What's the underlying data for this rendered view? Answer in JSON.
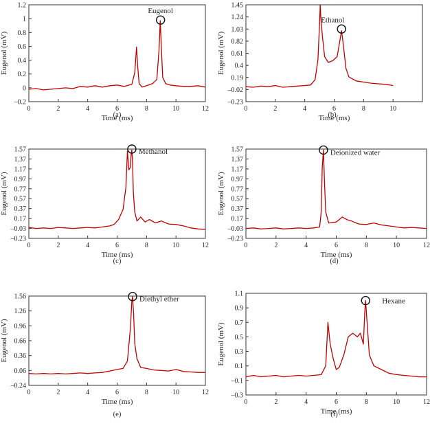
{
  "figure": {
    "chart_data": [
      {
        "panel_label": "(a)",
        "type": "line",
        "title": "",
        "xlabel": "Time (ms)",
        "ylabel": "Eugenol (mV)",
        "xlim": [
          0,
          12
        ],
        "ylim": [
          -0.2,
          1.2
        ],
        "xticks": [
          0,
          2,
          4,
          6,
          8,
          10,
          12
        ],
        "xtick_labels": [
          "0",
          "2",
          "4",
          "6",
          "8",
          "10",
          "12"
        ],
        "yticks": [
          -0.2,
          0,
          0.2,
          0.4,
          0.6,
          0.8,
          1,
          1.2
        ],
        "ytick_labels": [
          "–0.2",
          "0",
          "0.2",
          "0.4",
          "0.6",
          "0.8",
          "1",
          "1.2"
        ],
        "annotation": "Eugenol",
        "marker": {
          "x": 8.95,
          "y": 0.98
        },
        "series": [
          {
            "name": "Eugenol",
            "color": "#c00000",
            "x": [
              0,
              0.5,
              1,
              1.5,
              2,
              2.5,
              3,
              3.5,
              4,
              4.5,
              5,
              5.5,
              6,
              6.5,
              7,
              7.2,
              7.32,
              7.4,
              7.5,
              7.7,
              8,
              8.4,
              8.7,
              8.85,
              8.93,
              9.0,
              9.1,
              9.3,
              9.6,
              10,
              10.5,
              11,
              11.5,
              12
            ],
            "y": [
              -0.02,
              -0.01,
              -0.03,
              -0.02,
              -0.01,
              0,
              -0.01,
              0.02,
              0.01,
              0.03,
              0.01,
              0.03,
              0.04,
              0.02,
              0.05,
              0.22,
              0.59,
              0.3,
              0.06,
              0.01,
              0.03,
              0.06,
              0.12,
              0.55,
              0.97,
              0.6,
              0.15,
              0.06,
              0.04,
              0.03,
              0.02,
              0.02,
              0.03,
              0.01
            ]
          }
        ]
      },
      {
        "panel_label": "(b)",
        "type": "line",
        "title": "",
        "xlabel": "Time (ms)",
        "ylabel": "Eugenol (mV)",
        "xlim": [
          0,
          12
        ],
        "ylim": [
          -0.23,
          1.45
        ],
        "xticks": [
          0,
          2,
          4,
          6,
          8,
          10
        ],
        "xtick_labels": [
          "0",
          "2",
          "4",
          "6",
          "8",
          "10"
        ],
        "yticks": [
          -0.23,
          -0.02,
          0.19,
          0.4,
          0.61,
          0.82,
          1.03,
          1.24,
          1.45
        ],
        "ytick_labels": [
          "–0.23",
          "–0.02",
          "0.19",
          "0.4",
          "0.61",
          "0.82",
          "1.03",
          "1.24",
          "1.45"
        ],
        "annotation": "Ethanol",
        "marker": {
          "x": 6.5,
          "y": 1.03
        },
        "series": [
          {
            "name": "Ethanol",
            "color": "#c00000",
            "x": [
              0,
              0.5,
              1,
              1.5,
              2,
              2.5,
              3,
              3.5,
              4,
              4.4,
              4.7,
              4.9,
              5.0,
              5.05,
              5.1,
              5.2,
              5.35,
              5.6,
              5.9,
              6.2,
              6.4,
              6.5,
              6.6,
              6.8,
              7,
              7.5,
              8,
              8.5,
              9,
              9.5,
              10
            ],
            "y": [
              0.03,
              0.02,
              0.04,
              0.03,
              0.05,
              0.02,
              0.03,
              0.04,
              0.05,
              0.06,
              0.15,
              0.5,
              1.1,
              1.45,
              1.2,
              0.9,
              0.55,
              0.45,
              0.48,
              0.55,
              0.85,
              1.0,
              0.8,
              0.35,
              0.2,
              0.13,
              0.11,
              0.09,
              0.08,
              0.07,
              0.05
            ]
          }
        ]
      },
      {
        "panel_label": "(c)",
        "type": "line",
        "title": "",
        "xlabel": "Time (ms)",
        "ylabel": "Eugenol (mV)",
        "xlim": [
          0,
          12
        ],
        "ylim": [
          -0.23,
          1.57
        ],
        "xticks": [
          0,
          2,
          4,
          6,
          8,
          10,
          12
        ],
        "xtick_labels": [
          "0",
          "2",
          "4",
          "6",
          "8",
          "10",
          "12"
        ],
        "yticks": [
          -0.23,
          -0.03,
          0.17,
          0.37,
          0.57,
          0.77,
          0.97,
          1.17,
          1.37,
          1.57
        ],
        "ytick_labels": [
          "–0.23",
          "–0.03",
          "0.17",
          "0.37",
          "0.57",
          "0.77",
          "0.97",
          "1.17",
          "1.37",
          "1.57"
        ],
        "annotation": "Methanol",
        "marker": {
          "x": 7.0,
          "y": 1.57
        },
        "series": [
          {
            "name": "Methanol",
            "color": "#c00000",
            "x": [
              0,
              0.5,
              1,
              1.5,
              2,
              2.5,
              3,
              3.5,
              4,
              4.5,
              5,
              5.5,
              5.8,
              6.1,
              6.4,
              6.6,
              6.7,
              6.8,
              6.9,
              6.95,
              7.0,
              7.05,
              7.1,
              7.2,
              7.35,
              7.6,
              7.9,
              8.2,
              8.6,
              9,
              9.5,
              10,
              10.5,
              11,
              11.5,
              12
            ],
            "y": [
              -0.01,
              -0.03,
              -0.02,
              -0.03,
              -0.01,
              -0.02,
              -0.03,
              -0.02,
              -0.01,
              -0.02,
              0,
              0.02,
              0.05,
              0.15,
              0.35,
              0.8,
              1.53,
              1.15,
              1.2,
              1.45,
              1.55,
              1.3,
              0.7,
              0.3,
              0.12,
              0.2,
              0.1,
              0.15,
              0.08,
              0.12,
              0.06,
              0.05,
              0.02,
              -0.02,
              -0.04,
              -0.05
            ]
          }
        ]
      },
      {
        "panel_label": "(d)",
        "type": "line",
        "title": "",
        "xlabel": "Time (ms)",
        "ylabel": "Eugenol (mV)",
        "xlim": [
          0,
          12
        ],
        "ylim": [
          -0.23,
          1.57
        ],
        "xticks": [
          0,
          2,
          4,
          6,
          8,
          10,
          12
        ],
        "xtick_labels": [
          "0",
          "2",
          "4",
          "6",
          "8",
          "10",
          "12"
        ],
        "yticks": [
          -0.23,
          -0.03,
          0.17,
          0.37,
          0.57,
          0.77,
          0.97,
          1.17,
          1.37,
          1.57
        ],
        "ytick_labels": [
          "–0.23",
          "–0.03",
          "0.17",
          "0.37",
          "0.57",
          "0.77",
          "0.97",
          "1.17",
          "1.37",
          "1.57"
        ],
        "annotation": "Deionized water",
        "marker": {
          "x": 5.15,
          "y": 1.55
        },
        "series": [
          {
            "name": "Deionized water",
            "color": "#c00000",
            "x": [
              0,
              0.5,
              1,
              1.5,
              2,
              2.5,
              3,
              3.5,
              4,
              4.5,
              4.9,
              5.0,
              5.07,
              5.15,
              5.22,
              5.3,
              5.5,
              6,
              6.4,
              6.7,
              7,
              7.5,
              8,
              8.5,
              9,
              9.5,
              10,
              10.5,
              11,
              11.5,
              12
            ],
            "y": [
              -0.03,
              -0.02,
              -0.04,
              -0.03,
              -0.02,
              -0.04,
              -0.03,
              -0.02,
              -0.03,
              -0.02,
              0,
              0.3,
              1.2,
              1.55,
              0.9,
              0.3,
              0.08,
              0.1,
              0.2,
              0.15,
              0.12,
              0.06,
              0.05,
              0.08,
              0.04,
              0.02,
              0.0,
              -0.02,
              -0.01,
              -0.02,
              -0.03
            ]
          }
        ]
      },
      {
        "panel_label": "(e)",
        "type": "line",
        "title": "",
        "xlabel": "Time (ms)",
        "ylabel": "Eugenol (mV)",
        "xlim": [
          0,
          12
        ],
        "ylim": [
          -0.24,
          1.56
        ],
        "xticks": [
          0,
          2,
          4,
          6,
          8,
          10,
          12
        ],
        "xtick_labels": [
          "0",
          "2",
          "4",
          "6",
          "8",
          "10",
          "12"
        ],
        "yticks": [
          -0.24,
          0.06,
          0.36,
          0.66,
          0.96,
          1.26,
          1.56
        ],
        "ytick_labels": [
          "–0.24",
          "0.06",
          "0.36",
          "0.66",
          "0.96",
          "1.26",
          "1.56"
        ],
        "annotation": "Diethyl ether",
        "marker": {
          "x": 7.05,
          "y": 1.55
        },
        "series": [
          {
            "name": "Diethyl ether",
            "color": "#c00000",
            "x": [
              0,
              0.5,
              1,
              1.5,
              2,
              2.5,
              3,
              3.5,
              4,
              4.5,
              5,
              5.5,
              6,
              6.4,
              6.7,
              6.9,
              7.0,
              7.05,
              7.12,
              7.2,
              7.35,
              7.6,
              8,
              8.5,
              9,
              9.5,
              10,
              10.5,
              11,
              11.5,
              12
            ],
            "y": [
              0.0,
              -0.01,
              0.0,
              -0.01,
              0.0,
              -0.01,
              0.0,
              0.01,
              0.0,
              0.01,
              0.02,
              0.05,
              0.08,
              0.1,
              0.25,
              0.9,
              1.45,
              1.55,
              1.2,
              0.6,
              0.3,
              0.12,
              0.1,
              0.07,
              0.06,
              0.05,
              0.08,
              0.04,
              0.03,
              0.02,
              0.02
            ]
          }
        ]
      },
      {
        "panel_label": "(f)",
        "type": "line",
        "title": "",
        "xlabel": "Time (ms)",
        "ylabel": "Eugenol (mV)",
        "xlim": [
          0,
          12
        ],
        "ylim": [
          -0.3,
          1.1
        ],
        "xticks": [
          0,
          2,
          4,
          6,
          8,
          10,
          12
        ],
        "xtick_labels": [
          "0",
          "2",
          "4",
          "6",
          "8",
          "10",
          "12"
        ],
        "yticks": [
          -0.3,
          -0.1,
          0.1,
          0.3,
          0.5,
          0.7,
          0.9,
          1.1
        ],
        "ytick_labels": [
          "–0.3",
          "–0.1",
          "0.1",
          "0.3",
          "0.5",
          "0.7",
          "0.9",
          "1.1"
        ],
        "annotation": "Hexane",
        "marker": {
          "x": 7.95,
          "y": 1.0
        },
        "series": [
          {
            "name": "Hexane",
            "color": "#c00000",
            "x": [
              0,
              0.5,
              1,
              1.5,
              2,
              2.5,
              3,
              3.5,
              4,
              4.5,
              5,
              5.3,
              5.45,
              5.6,
              5.8,
              6.0,
              6.2,
              6.5,
              6.8,
              7.1,
              7.4,
              7.6,
              7.8,
              7.9,
              7.95,
              8.05,
              8.2,
              8.5,
              9,
              9.5,
              10,
              10.5,
              11,
              11.5,
              12
            ],
            "y": [
              -0.05,
              -0.03,
              -0.05,
              -0.04,
              -0.03,
              -0.05,
              -0.04,
              -0.03,
              -0.04,
              -0.03,
              -0.02,
              0.1,
              0.7,
              0.4,
              0.2,
              0.05,
              0.08,
              0.25,
              0.5,
              0.55,
              0.5,
              0.55,
              0.4,
              0.85,
              1.0,
              0.7,
              0.25,
              0.1,
              0.05,
              0.0,
              -0.02,
              -0.03,
              -0.04,
              -0.05,
              -0.05
            ]
          }
        ]
      }
    ]
  }
}
